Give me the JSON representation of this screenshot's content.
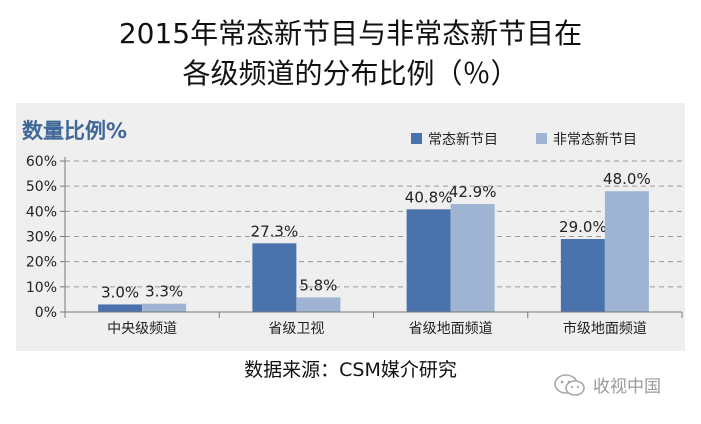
{
  "title_line1": "2015年常态新节目与非常态新节目在",
  "title_line2": "各级频道的分布比例（％）",
  "source": "数据来源：CSM媒介研究",
  "watermark": "收视中国",
  "chart_data": {
    "type": "bar",
    "title": "数量比例%",
    "categories": [
      "中央级频道",
      "省级卫视",
      "省级地面频道",
      "市级地面频道"
    ],
    "series": [
      {
        "name": "常态新节目",
        "values": [
          3.0,
          27.3,
          40.8,
          29.0
        ],
        "labels": [
          "3.0%",
          "27.3%",
          "40.8%",
          "29.0%"
        ],
        "color": "#4a73ad"
      },
      {
        "name": "非常态新节目",
        "values": [
          3.3,
          5.8,
          42.9,
          48.0
        ],
        "labels": [
          "3.3%",
          "5.8%",
          "42.9%",
          "48.0%"
        ],
        "color": "#9fb4d3"
      }
    ],
    "yticks": [
      "0%",
      "10%",
      "20%",
      "30%",
      "40%",
      "50%",
      "60%"
    ],
    "ylim": [
      0,
      60
    ],
    "grid": true,
    "legend": "top-right"
  }
}
